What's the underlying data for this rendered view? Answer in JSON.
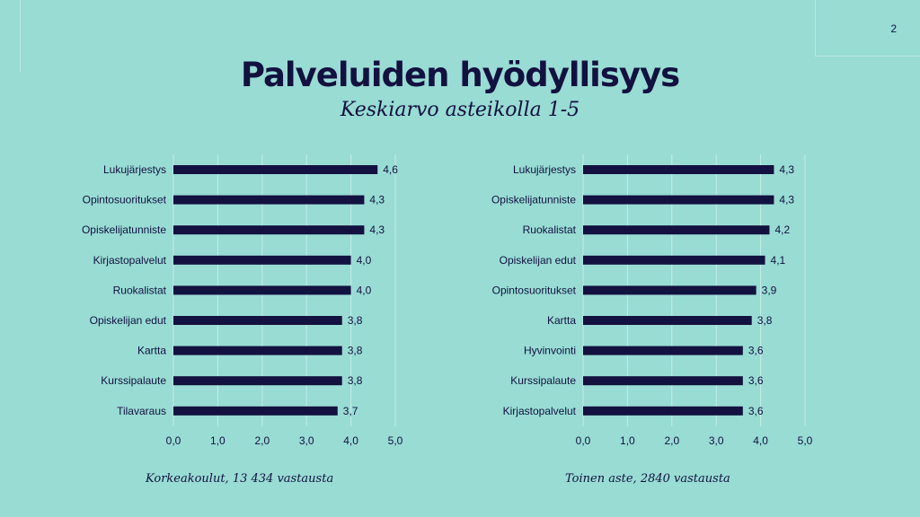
{
  "page_number": "2",
  "title": "Palveluiden hyödyllisyys",
  "subtitle": "Keskiarvo asteikolla 1-5",
  "colors": {
    "background": "#98dcd4",
    "bar": "#13113f",
    "text": "#13113f"
  },
  "chart_data": [
    {
      "type": "bar",
      "orientation": "horizontal",
      "caption": "Korkeakoulut, 13 434 vastausta",
      "categories": [
        "Lukujärjestys",
        "Opintosuoritukset",
        "Opiskelijatunniste",
        "Kirjastopalvelut",
        "Ruokalistat",
        "Opiskelijan edut",
        "Kartta",
        "Kurssipalaute",
        "Tilavaraus"
      ],
      "values": [
        4.6,
        4.3,
        4.3,
        4.0,
        4.0,
        3.8,
        3.8,
        3.8,
        3.7
      ],
      "value_labels": [
        "4,6",
        "4,3",
        "4,3",
        "4,0",
        "4,0",
        "3,8",
        "3,8",
        "3,8",
        "3,7"
      ],
      "xlim": [
        0,
        5
      ],
      "ticks": [
        0,
        1,
        2,
        3,
        4,
        5
      ],
      "tick_labels": [
        "0,0",
        "1,0",
        "2,0",
        "3,0",
        "4,0",
        "5,0"
      ],
      "grid": true
    },
    {
      "type": "bar",
      "orientation": "horizontal",
      "caption": "Toinen aste, 2840 vastausta",
      "categories": [
        "Lukujärjestys",
        "Opiskelijatunniste",
        "Ruokalistat",
        "Opiskelijan edut",
        "Opintosuoritukset",
        "Kartta",
        "Hyvinvointi",
        "Kurssipalaute",
        "Kirjastopalvelut"
      ],
      "values": [
        4.3,
        4.3,
        4.2,
        4.1,
        3.9,
        3.8,
        3.6,
        3.6,
        3.6
      ],
      "value_labels": [
        "4,3",
        "4,3",
        "4,2",
        "4,1",
        "3,9",
        "3,8",
        "3,6",
        "3,6",
        "3,6"
      ],
      "xlim": [
        0,
        5
      ],
      "ticks": [
        0,
        1,
        2,
        3,
        4,
        5
      ],
      "tick_labels": [
        "0,0",
        "1,0",
        "2,0",
        "3,0",
        "4,0",
        "5,0"
      ],
      "grid": true
    }
  ]
}
